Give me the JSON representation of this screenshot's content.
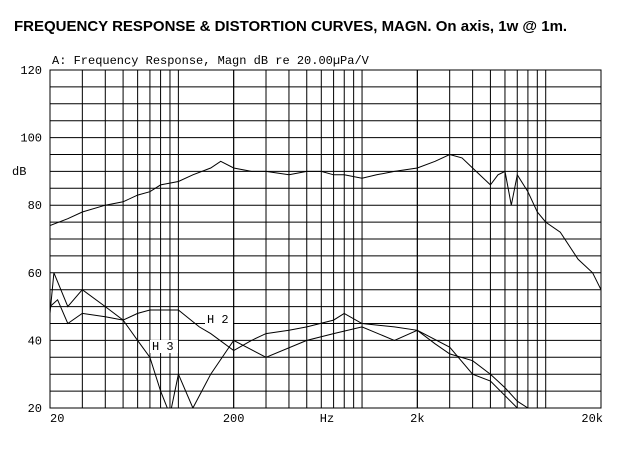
{
  "chart_data": {
    "type": "line",
    "title": "FREQUENCY RESPONSE & DISTORTION CURVES, MAGN. On axis, 1w @ 1m.",
    "subtitle": "A: Frequency Response, Magn dB re 20.00µPa/V",
    "y_label": "dB",
    "x_label": "Hz",
    "x_scale": "log",
    "grid": true,
    "xlim": [
      20,
      20000
    ],
    "ylim": [
      20,
      120
    ],
    "xticks": [
      20,
      200,
      {
        "value": 2000,
        "label": "2k"
      },
      {
        "value": 20000,
        "label": "20k"
      }
    ],
    "yticks": [
      20,
      40,
      60,
      80,
      100,
      120
    ],
    "series": [
      {
        "color": "#000000",
        "x": [
          20,
          25,
          30,
          40,
          50,
          60,
          70,
          80,
          100,
          120,
          150,
          170,
          200,
          250,
          300,
          400,
          500,
          600,
          700,
          800,
          1000,
          1200,
          1500,
          2000,
          2500,
          3000,
          3500,
          4000,
          5000,
          5500,
          6000,
          6500,
          7000,
          8000,
          9000,
          10000,
          12000,
          15000,
          18000,
          20000
        ],
        "values": [
          74,
          76,
          78,
          80,
          81,
          83,
          84,
          86,
          87,
          89,
          91,
          93,
          91,
          90,
          90,
          89,
          90,
          90,
          89,
          89,
          88,
          89,
          90,
          91,
          93,
          95,
          94,
          91,
          86,
          89,
          90,
          80,
          89,
          84,
          78,
          75,
          72,
          64,
          60,
          55
        ]
      },
      {
        "name": "H 2",
        "color": "#000000",
        "x": [
          20,
          22,
          25,
          30,
          40,
          50,
          60,
          70,
          100,
          130,
          150,
          200,
          250,
          300,
          400,
          500,
          700,
          800,
          1000,
          1500,
          2000,
          2500,
          3000,
          4000,
          5000,
          6000,
          7000,
          8000
        ],
        "values": [
          50,
          52,
          45,
          48,
          47,
          46,
          48,
          49,
          49,
          44,
          42,
          37,
          40,
          42,
          43,
          44,
          46,
          48,
          45,
          44,
          43,
          39,
          36,
          34,
          30,
          26,
          22,
          20
        ]
      },
      {
        "name": "H 3",
        "color": "#000000",
        "x": [
          20,
          21,
          25,
          30,
          40,
          50,
          60,
          70,
          80,
          90,
          100,
          120,
          150,
          200,
          300,
          500,
          700,
          1000,
          1500,
          2000,
          3000,
          4000,
          5000,
          7000,
          10000
        ],
        "values": [
          48,
          60,
          50,
          55,
          50,
          46,
          40,
          35,
          25,
          18,
          30,
          20,
          30,
          40,
          35,
          40,
          42,
          44,
          40,
          43,
          38,
          30,
          28,
          20,
          18
        ]
      }
    ]
  }
}
